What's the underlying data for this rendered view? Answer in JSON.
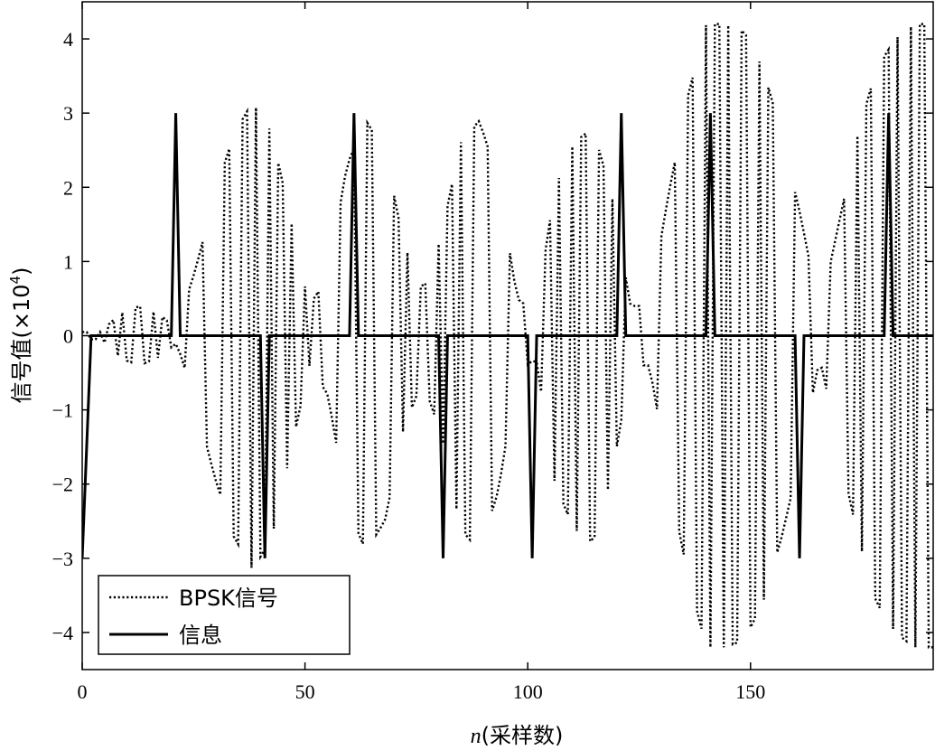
{
  "chart_data": {
    "type": "line",
    "xlabel": "n(采样数)",
    "xlabel_italic_part": "n",
    "xlabel_rest": "(采样数)",
    "ylabel_main": "信号值(×10",
    "ylabel_sup": "4",
    "ylabel_close": ")",
    "xlim": [
      0,
      191
    ],
    "ylim": [
      -4.5,
      4.5
    ],
    "xticks": [
      0,
      50,
      100,
      150
    ],
    "xtick_labels": [
      "0",
      "50",
      "100",
      "150"
    ],
    "yticks": [
      -4,
      -3,
      -2,
      -1,
      0,
      1,
      2,
      3,
      4
    ],
    "ytick_labels": [
      "−4",
      "−3",
      "−2",
      "−1",
      "0",
      "1",
      "2",
      "3",
      "4"
    ],
    "grid": false,
    "legend_position": "bottom-left",
    "series": [
      {
        "name": "BPSK信号",
        "style": "dotted",
        "sample_period": 1,
        "peak_amplitudes": [
          0.05,
          0.05,
          0.3,
          0.4,
          0.3,
          0.1,
          0.9,
          1.9,
          2.7,
          3.15,
          2.75,
          1.6,
          0.4,
          0.8,
          2.3,
          2.9,
          2.5,
          1.25,
          0.6,
          1.35,
          2.6,
          2.9,
          2.1,
          0.5,
          0.3,
          2.0,
          2.6,
          2.8,
          1.9,
          0.4,
          0.4,
          1.9,
          3.2,
          4.2,
          4.2,
          4.1,
          3.6,
          2.7,
          1.6,
          0.3,
          1.5,
          2.7,
          3.6,
          4.0,
          4.2
        ],
        "peak_polarity": [
          1,
          -1,
          1,
          1,
          -1,
          1,
          -1,
          1,
          1,
          -1,
          1,
          -1,
          1,
          -1,
          1,
          1,
          -1,
          1,
          1,
          -1,
          1,
          -1,
          1,
          -1,
          1,
          -1,
          1,
          1,
          -1,
          1,
          -1,
          1,
          1,
          -1,
          1,
          1,
          -1,
          1,
          -1,
          1,
          -1,
          1,
          1,
          -1,
          1
        ]
      },
      {
        "name": "信息",
        "style": "solid",
        "x": [
          0,
          2,
          20,
          21,
          22,
          40,
          41,
          42,
          60,
          61,
          62,
          80,
          81,
          82,
          100,
          101,
          102,
          120,
          121,
          122,
          140,
          141,
          142,
          160,
          161,
          162,
          180,
          181,
          182,
          191
        ],
        "y": [
          -3,
          0,
          0,
          3,
          0,
          0,
          -3,
          0,
          0,
          3,
          0,
          0,
          -3,
          0,
          0,
          -3,
          0,
          0,
          3,
          0,
          0,
          3,
          0,
          0,
          -3,
          0,
          0,
          3,
          0,
          0
        ]
      }
    ]
  }
}
